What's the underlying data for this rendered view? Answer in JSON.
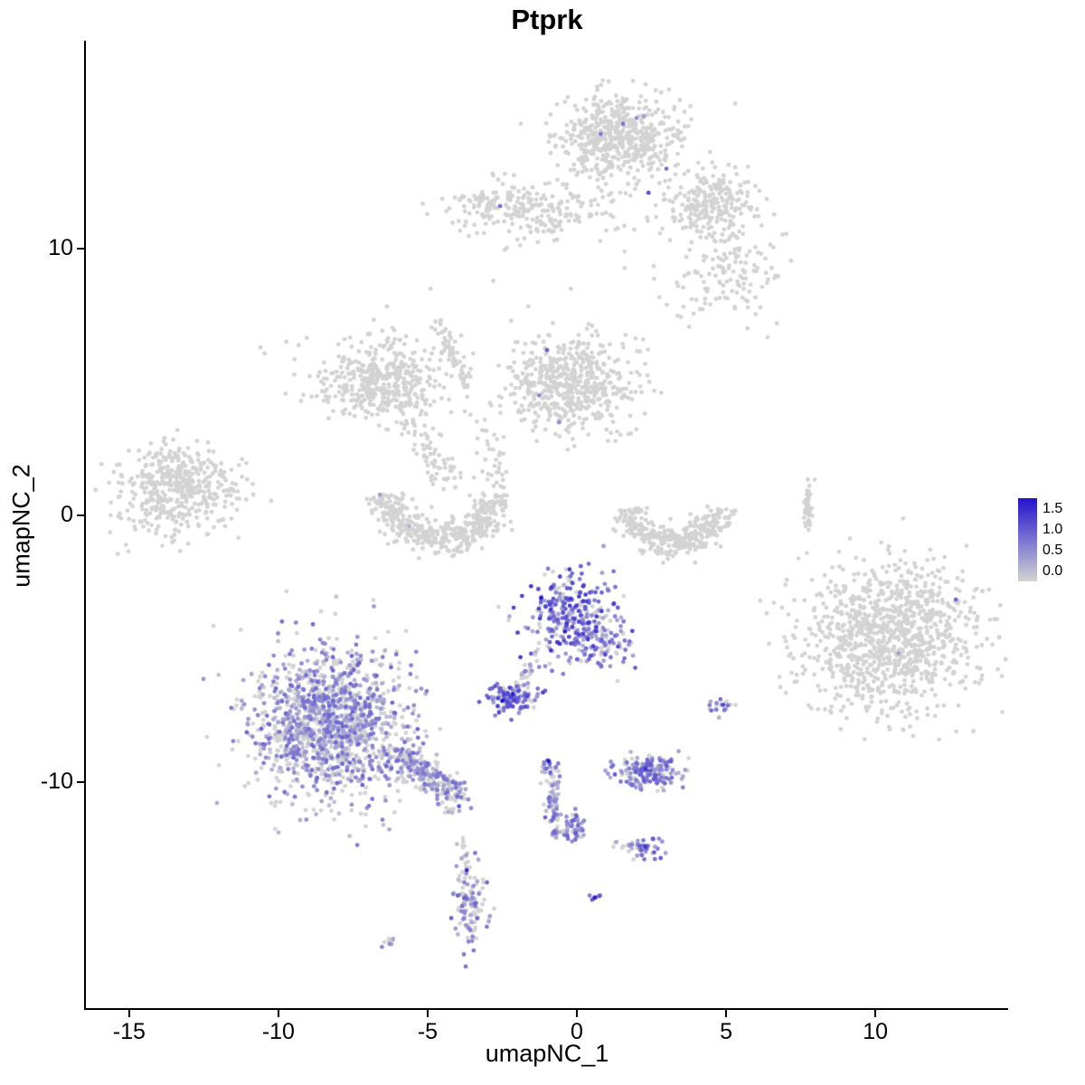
{
  "chart_data": {
    "type": "scatter",
    "title": "Ptprk",
    "xlabel": "umapNC_1",
    "ylabel": "umapNC_2",
    "x_domain": [
      -16.45,
      14.45
    ],
    "y_domain": [
      -18.47,
      17.8
    ],
    "x_ticks": [
      -15,
      -10,
      -5,
      0,
      5,
      10
    ],
    "y_ticks": [
      -10,
      0,
      10
    ],
    "grid": false,
    "legend": {
      "position": "right",
      "labels": [
        "1.5",
        "1.0",
        "0.5",
        "0.0"
      ],
      "vmax": 1.7
    },
    "style": {
      "zero_color": "#d3d3d3",
      "high_color": "#2213cd",
      "background": "#ffffff",
      "axis_color": "#000000",
      "point_radius": 2.4,
      "seed": 42
    },
    "clusters": [
      {
        "name": "top-main-cluster",
        "shape": "gauss",
        "cx": 1.4,
        "cy": 14.2,
        "sdx": 1.0,
        "sdy": 0.8,
        "n": 560,
        "expr_frac": 0.01,
        "v_min": 0.4,
        "v_max": 0.9
      },
      {
        "name": "top-right-arm",
        "shape": "gauss",
        "cx": 4.4,
        "cy": 11.7,
        "sdx": 0.8,
        "sdy": 0.65,
        "n": 230,
        "expr_frac": 0.005,
        "v_min": 0.4,
        "v_max": 0.8
      },
      {
        "name": "top-right-scatter",
        "shape": "gauss",
        "cx": 4.9,
        "cy": 9.2,
        "sdx": 1.05,
        "sdy": 0.95,
        "n": 150,
        "expr_frac": 0,
        "v_min": 0,
        "v_max": 0
      },
      {
        "name": "top-left-band",
        "shape": "gauss",
        "cx": -1.6,
        "cy": 11.5,
        "sdx": 1.5,
        "sdy": 0.55,
        "n": 260,
        "expr_frac": 0,
        "v_min": 0,
        "v_max": 0
      },
      {
        "name": "mid-center-blob",
        "shape": "gauss",
        "cx": -0.3,
        "cy": 4.9,
        "sdx": 1.1,
        "sdy": 0.9,
        "n": 560,
        "expr_frac": 0.004,
        "v_min": 0.4,
        "v_max": 0.8
      },
      {
        "name": "mid-left-blob",
        "shape": "gauss",
        "cx": -6.6,
        "cy": 5.1,
        "sdx": 1.1,
        "sdy": 0.75,
        "n": 430,
        "expr_frac": 0,
        "v_min": 0,
        "v_max": 0
      },
      {
        "name": "far-left-cluster",
        "shape": "gauss",
        "cx": -13.3,
        "cy": 1.0,
        "sdx": 0.95,
        "sdy": 0.85,
        "n": 470,
        "expr_frac": 0,
        "v_min": 0,
        "v_max": 0
      },
      {
        "name": "right-big-cluster",
        "shape": "gauss",
        "cx": 10.5,
        "cy": -4.6,
        "sdx": 1.5,
        "sdy": 1.4,
        "n": 1050,
        "expr_frac": 0.001,
        "v_min": 0.3,
        "v_max": 0.6
      },
      {
        "name": "purple-center-top",
        "shape": "gauss",
        "cx": -0.15,
        "cy": -3.8,
        "sdx": 0.8,
        "sdy": 0.85,
        "n": 300,
        "expr_frac": 0.8,
        "v_min": 0.3,
        "v_max": 1.4
      },
      {
        "name": "purple-center-tail",
        "shape": "gauss",
        "cx": 0.9,
        "cy": -4.9,
        "sdx": 0.45,
        "sdy": 0.45,
        "n": 70,
        "expr_frac": 0.6,
        "v_min": 0.2,
        "v_max": 1.0
      },
      {
        "name": "purple-small-mid",
        "shape": "gauss",
        "cx": -2.2,
        "cy": -6.85,
        "sdx": 0.4,
        "sdy": 0.3,
        "n": 115,
        "expr_frac": 0.85,
        "v_min": 0.4,
        "v_max": 1.3
      },
      {
        "name": "purple-left-large",
        "shape": "gauss",
        "cx": -8.2,
        "cy": -7.8,
        "sdx": 1.3,
        "sdy": 1.4,
        "n": 1350,
        "expr_frac": 0.6,
        "v_min": 0.15,
        "v_max": 1.0
      },
      {
        "name": "purple-right-small",
        "shape": "gauss",
        "cx": 2.4,
        "cy": -9.6,
        "sdx": 0.55,
        "sdy": 0.3,
        "n": 170,
        "expr_frac": 0.75,
        "v_min": 0.3,
        "v_max": 1.1
      },
      {
        "name": "purple-dots-right",
        "shape": "gauss",
        "cx": 4.9,
        "cy": -7.15,
        "sdx": 0.22,
        "sdy": 0.18,
        "n": 20,
        "expr_frac": 0.7,
        "v_min": 0.3,
        "v_max": 1.0
      },
      {
        "name": "small-blob-low-1",
        "shape": "gauss",
        "cx": -0.1,
        "cy": -11.7,
        "sdx": 0.2,
        "sdy": 0.32,
        "n": 48,
        "expr_frac": 0.75,
        "v_min": 0.3,
        "v_max": 1.1
      },
      {
        "name": "small-blob-low-2",
        "shape": "gauss",
        "cx": 2.25,
        "cy": -12.5,
        "sdx": 0.3,
        "sdy": 0.18,
        "n": 42,
        "expr_frac": 0.8,
        "v_min": 0.3,
        "v_max": 1.1
      },
      {
        "name": "bottom-small-cluster",
        "shape": "gauss",
        "cx": -3.55,
        "cy": -14.5,
        "sdx": 0.28,
        "sdy": 0.75,
        "n": 115,
        "expr_frac": 0.55,
        "v_min": 0.2,
        "v_max": 1.0
      },
      {
        "name": "bottom-tiny-dot",
        "shape": "gauss",
        "cx": -6.2,
        "cy": -16.05,
        "sdx": 0.13,
        "sdy": 0.1,
        "n": 10,
        "expr_frac": 0.6,
        "v_min": 0.3,
        "v_max": 0.8
      },
      {
        "name": "tiny-dot-mid-bottom",
        "shape": "gauss",
        "cx": 0.6,
        "cy": -14.3,
        "sdx": 0.1,
        "sdy": 0.1,
        "n": 6,
        "expr_frac": 0.8,
        "v_min": 0.5,
        "v_max": 1.3
      },
      {
        "name": "center-crescent",
        "shape": "arc",
        "cx": -4.55,
        "cy": 0.95,
        "r": 1.85,
        "a1": 185,
        "a2": 355,
        "jitter": 0.33,
        "n": 430,
        "expr_frac": 0.002,
        "v_min": 0.3,
        "v_max": 0.6
      },
      {
        "name": "right-crescent",
        "shape": "arc",
        "cx": 3.25,
        "cy": 0.55,
        "r": 1.6,
        "a1": 190,
        "a2": 350,
        "jitter": 0.3,
        "n": 330,
        "expr_frac": 0,
        "v_min": 0,
        "v_max": 0
      },
      {
        "name": "left-trail-upper",
        "shape": "line",
        "x1": -6.0,
        "y1": 4.3,
        "x2": -4.2,
        "y2": 1.2,
        "jitter": 0.28,
        "n": 90,
        "expr_frac": 0,
        "v_min": 0,
        "v_max": 0
      },
      {
        "name": "diag-trail-mid",
        "shape": "line",
        "x1": -4.78,
        "y1": 7.6,
        "x2": -3.72,
        "y2": 4.8,
        "jitter": 0.16,
        "n": 55,
        "expr_frac": 0,
        "v_min": 0,
        "v_max": 0
      },
      {
        "name": "center-trail-mid",
        "shape": "line",
        "x1": -3.3,
        "y1": 3.7,
        "x2": -2.4,
        "y2": 1.0,
        "jitter": 0.3,
        "n": 35,
        "expr_frac": 0,
        "v_min": 0,
        "v_max": 0
      },
      {
        "name": "purple-left-tail",
        "shape": "line",
        "x1": -5.9,
        "y1": -9.0,
        "x2": -4.0,
        "y2": -10.6,
        "jitter": 0.3,
        "n": 230,
        "expr_frac": 0.5,
        "v_min": 0.2,
        "v_max": 0.9
      },
      {
        "name": "purple-vertical-trail",
        "shape": "line",
        "x1": -0.93,
        "y1": -9.2,
        "x2": -0.63,
        "y2": -12.1,
        "jitter": 0.13,
        "n": 95,
        "expr_frac": 0.6,
        "v_min": 0.2,
        "v_max": 1.0
      },
      {
        "name": "right-thin-line",
        "shape": "line",
        "x1": 7.7,
        "y1": -0.45,
        "x2": 7.78,
        "y2": 1.4,
        "jitter": 0.07,
        "n": 45,
        "expr_frac": 0,
        "v_min": 0,
        "v_max": 0
      },
      {
        "name": "connector-purple-mid",
        "shape": "line",
        "x1": -1.9,
        "y1": -6.2,
        "x2": -1.25,
        "y2": -5.3,
        "jitter": 0.12,
        "n": 22,
        "expr_frac": 0.5,
        "v_min": 0.2,
        "v_max": 0.8
      },
      {
        "name": "blob2-lead-dots",
        "shape": "line",
        "x1": 1.3,
        "y1": -12.3,
        "x2": 1.95,
        "y2": -12.45,
        "jitter": 0.1,
        "n": 12,
        "expr_frac": 0.2,
        "v_min": 0.2,
        "v_max": 0.5
      },
      {
        "name": "bottom-small-lead",
        "shape": "line",
        "x1": -3.85,
        "y1": -12.1,
        "x2": -3.66,
        "y2": -13.1,
        "jitter": 0.1,
        "n": 15,
        "expr_frac": 0.2,
        "v_min": 0.2,
        "v_max": 0.5
      }
    ],
    "extra_points": [
      {
        "x": 0.8,
        "y": 14.3,
        "v": 0.8
      },
      {
        "x": 2.0,
        "y": 14.9,
        "v": 0.6
      },
      {
        "x": 3.0,
        "y": 13.0,
        "v": 0.9
      },
      {
        "x": 2.4,
        "y": 12.1,
        "v": 1.2
      },
      {
        "x": -2.57,
        "y": 11.6,
        "v": 0.9
      },
      {
        "x": -1.0,
        "y": 6.2,
        "v": 1.0
      },
      {
        "x": -1.26,
        "y": 4.5,
        "v": 0.7
      },
      {
        "x": -6.6,
        "y": 0.78,
        "v": 0.5
      },
      {
        "x": 12.7,
        "y": -3.15,
        "v": 1.0
      },
      {
        "x": -1.2,
        "y": -3.1,
        "v": 1.7
      },
      {
        "x": -0.4,
        "y": -4.35,
        "v": 1.6
      },
      {
        "x": -2.5,
        "y": -6.95,
        "v": 1.7
      },
      {
        "x": -2.15,
        "y": -6.7,
        "v": 1.6
      },
      {
        "x": -0.95,
        "y": -9.2,
        "v": 1.7
      },
      {
        "x": 2.3,
        "y": -9.5,
        "v": 1.4
      },
      {
        "x": 4.9,
        "y": -7.1,
        "v": 1.3
      },
      {
        "x": 2.3,
        "y": -12.42,
        "v": 1.4
      },
      {
        "x": 0.6,
        "y": -14.32,
        "v": 1.6
      },
      {
        "x": -3.69,
        "y": -13.3,
        "v": 1.5
      },
      {
        "x": -3.95,
        "y": -10.9,
        "v": 1.1
      },
      {
        "x": -10.6,
        "y": 6.3,
        "v": 0
      },
      {
        "x": -2.8,
        "y": 8.8,
        "v": 0
      },
      {
        "x": 6.7,
        "y": 7.2,
        "v": 0
      },
      {
        "x": -4.9,
        "y": 8.5,
        "v": 0
      },
      {
        "x": -0.2,
        "y": 8.5,
        "v": 0
      },
      {
        "x": 1.6,
        "y": 9.9,
        "v": 0
      }
    ]
  }
}
